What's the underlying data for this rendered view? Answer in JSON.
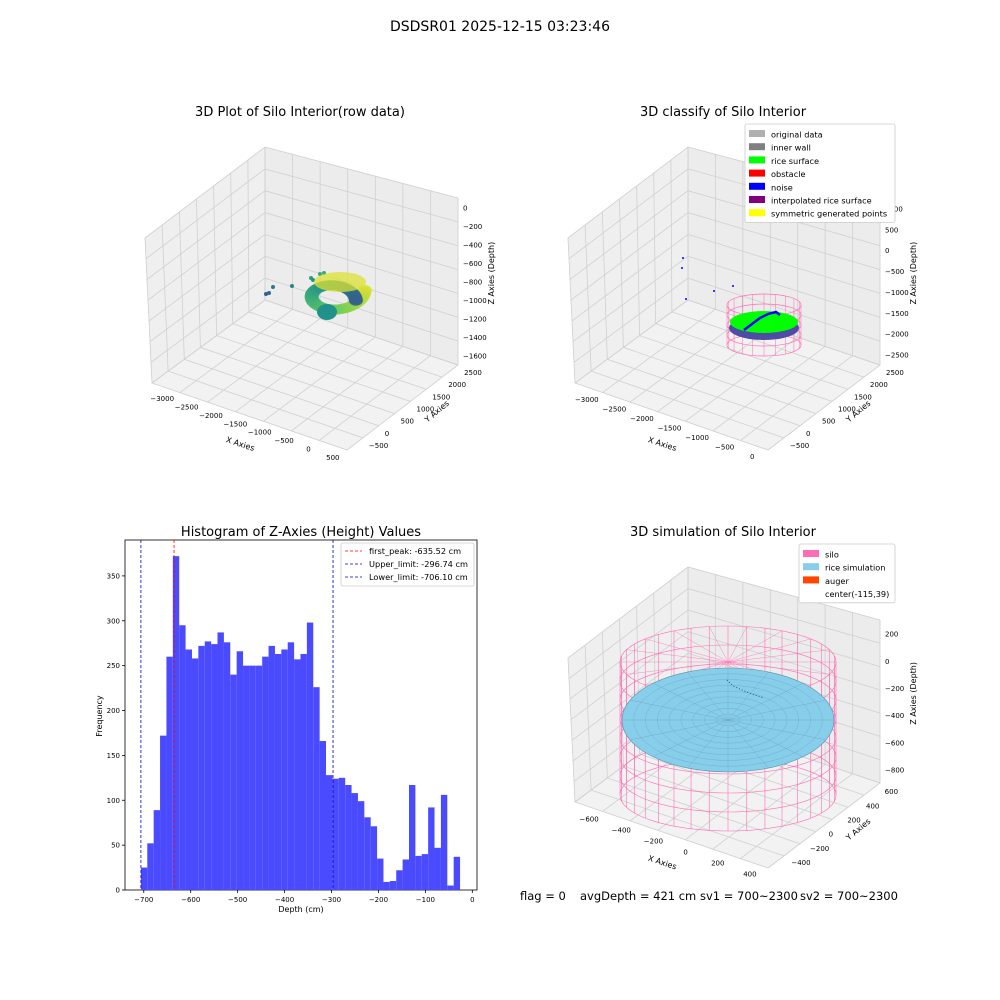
{
  "header": {
    "title": "DSDSR01 2025-12-15 03:23:46"
  },
  "footer": {
    "flag": "flag = 0",
    "avg_depth": "avgDepth = 421 cm",
    "sv1": "sv1 = 700~2300",
    "sv2": "sv2 = 700~2300"
  },
  "colors": {
    "hist_bar": "#4a4aff",
    "first_peak": "#ff0000",
    "limit_lines": "#0000cc",
    "silo_wire": "#ff6eb4",
    "rice": "#87ceeb",
    "auger": "#ff4500"
  },
  "chart_data": [
    {
      "type": "scatter",
      "projection": "3d",
      "title": "3D Plot of Silo Interior(row data)",
      "xlabel": "X Axies",
      "ylabel": "Y Axies",
      "zlabel": "Z Axies (Depth)",
      "xticks": [
        "−3000",
        "−2500",
        "−2000",
        "−1500",
        "−1000",
        "−500",
        "0",
        "500"
      ],
      "yticks": [
        "−500",
        "0",
        "500",
        "1000",
        "1500",
        "2000",
        "2500"
      ],
      "zticks": [
        "0",
        "−200",
        "−400",
        "−600",
        "−800",
        "−1000",
        "−1200",
        "−1400",
        "−1600"
      ],
      "xlim": [
        -3300,
        500
      ],
      "ylim": [
        -500,
        2700
      ],
      "zlim": [
        -1650,
        50
      ],
      "colormap": "viridis",
      "grid": true
    },
    {
      "type": "scatter",
      "projection": "3d",
      "title": "3D classify of Silo Interior",
      "xlabel": "X Axies",
      "ylabel": "Y Axies",
      "zlabel": "Z Axies (Depth)",
      "xticks": [
        "−3000",
        "−2500",
        "−2000",
        "−1500",
        "−1000",
        "−500",
        "0"
      ],
      "yticks": [
        "−500",
        "0",
        "500",
        "1000",
        "1500",
        "2000",
        "2500"
      ],
      "zticks": [
        "1000",
        "500",
        "0",
        "−500",
        "−1000",
        "−1500",
        "−2000",
        "−2500"
      ],
      "legend_position": "top-right",
      "legend": [
        {
          "label": "original data",
          "color": "#b0b0b0"
        },
        {
          "label": "inner wall",
          "color": "#808080"
        },
        {
          "label": "rice surface",
          "color": "#00ff00"
        },
        {
          "label": "obstacle",
          "color": "#ff0000"
        },
        {
          "label": "noise",
          "color": "#0000ff"
        },
        {
          "label": "interpolated rice surface",
          "color": "#800080"
        },
        {
          "label": "symmetric generated points",
          "color": "#ffff00"
        }
      ],
      "grid": true
    },
    {
      "type": "bar",
      "title": "Histogram of Z-Axies (Height) Values",
      "xlabel": "Depth (cm)",
      "ylabel": "Frequency",
      "xlim": [
        -740,
        10
      ],
      "ylim": [
        0,
        390
      ],
      "xticks": [
        -700,
        -600,
        -500,
        -400,
        -300,
        -200,
        -100,
        0
      ],
      "yticks": [
        0,
        50,
        100,
        150,
        200,
        250,
        300,
        350
      ],
      "bin_start": -706.1,
      "bin_width": 13.6,
      "values": [
        25,
        52,
        89,
        172,
        260,
        372,
        295,
        268,
        258,
        272,
        277,
        274,
        287,
        276,
        240,
        266,
        250,
        250,
        250,
        260,
        272,
        263,
        268,
        276,
        257,
        263,
        298,
        226,
        166,
        128,
        124,
        125,
        117,
        108,
        99,
        81,
        71,
        35,
        9,
        10,
        22,
        34,
        117,
        38,
        40,
        92,
        47,
        106,
        5,
        37
      ],
      "vlines": [
        {
          "label": "first_peak: -635.52 cm",
          "value": -635.52,
          "color": "#ff0000"
        },
        {
          "label": "Upper_limit: -296.74 cm",
          "value": -296.74,
          "color": "#0000cc"
        },
        {
          "label": "Lower_limit: -706.10 cm",
          "value": -706.1,
          "color": "#0000cc"
        }
      ],
      "legend_position": "top-right"
    },
    {
      "type": "scatter",
      "projection": "3d",
      "title": "3D simulation of Silo Interior",
      "xlabel": "X Axies",
      "ylabel": "Y Axies",
      "zlabel": "Z Axies (Depth)",
      "xticks": [
        "−600",
        "−400",
        "−200",
        "0",
        "200",
        "400"
      ],
      "yticks": [
        "−400",
        "−200",
        "0",
        "200",
        "400",
        "600"
      ],
      "zticks": [
        "200",
        "0",
        "−200",
        "−400",
        "−600",
        "−800"
      ],
      "legend_position": "top-right",
      "legend": [
        {
          "label": "silo",
          "color": "#ff6eb4"
        },
        {
          "label": "rice simulation",
          "color": "#87ceeb"
        },
        {
          "label": "auger",
          "color": "#ff4500"
        },
        {
          "label": "center(-115,39)",
          "color": ""
        }
      ],
      "grid": true
    }
  ]
}
